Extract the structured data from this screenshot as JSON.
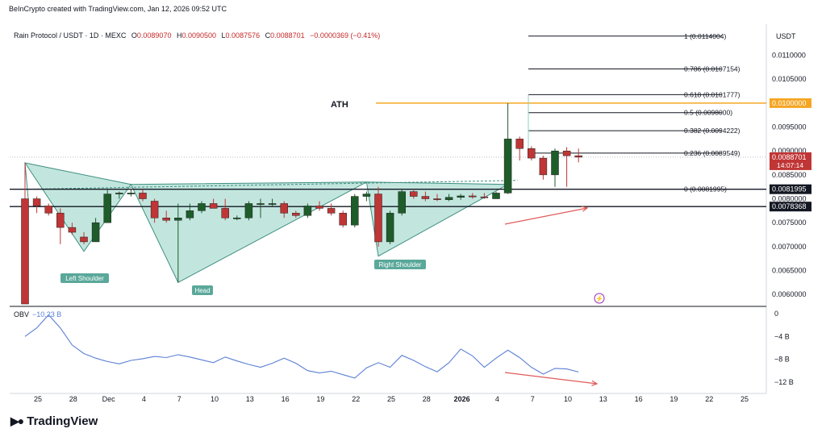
{
  "header": {
    "source": "BeInCrypto created with TradingView.com, Jan 12, 2026 09:52 UTC"
  },
  "legend": {
    "symbol": "Rain Protocol / USDT · 1D · MEXC",
    "open_key": "O",
    "open": "0.0089070",
    "high_key": "H",
    "high": "0.0090500",
    "low_key": "L",
    "low": "0.0087576",
    "close_key": "C",
    "close": "0.0088701",
    "change": "−0.0000369 (−0.41%)"
  },
  "obv": {
    "label": "OBV",
    "value": "−10.23 B"
  },
  "brand": {
    "name": "TradingView",
    "logo_icon": "tradingview-logo-icon"
  },
  "colors": {
    "up": "#1e5c2a",
    "down": "#c03535",
    "pattern_fill": "#8fd1c2",
    "ath": "#f5a623",
    "fib": "#131722",
    "obv_line": "#5b7fd6",
    "arrow": "#e05a5a"
  },
  "chart_data": {
    "type": "candlestick",
    "price_axis": {
      "unit": "USDT",
      "range": [
        0.00575,
        0.01165
      ],
      "ticks": [
        "0.0110000",
        "0.0105000",
        "0.0095000",
        "0.0090000",
        "0.0085000",
        "0.0080000",
        "0.0075000",
        "0.0070000",
        "0.0065000",
        "0.0060000"
      ],
      "tick_values": [
        0.011,
        0.0105,
        0.0095,
        0.009,
        0.0085,
        0.008,
        0.0075,
        0.007,
        0.0065,
        0.006
      ],
      "badges": [
        {
          "value": 0.01,
          "label": "0.0100000",
          "color": "#f5a623"
        },
        {
          "value": 0.0088701,
          "label": "0.0088701",
          "sub": "14:07:14",
          "color": "#c03535"
        },
        {
          "value": 0.0081995,
          "label": "0.0081995",
          "color": "#131722"
        },
        {
          "value": 0.0078368,
          "label": "0.0078368",
          "color": "#131722"
        }
      ]
    },
    "x_axis": {
      "labels": [
        "25",
        "28",
        "Dec",
        "4",
        "7",
        "10",
        "13",
        "16",
        "19",
        "22",
        "25",
        "28",
        "2026",
        "4",
        "7",
        "10",
        "13",
        "16",
        "19",
        "22",
        "25"
      ],
      "label_indices": [
        0,
        3,
        6,
        9,
        12,
        15,
        18,
        21,
        24,
        27,
        30,
        33,
        36,
        39,
        42,
        45,
        48,
        51,
        54,
        57,
        60
      ]
    },
    "candles": [
      {
        "o": 0.008,
        "h": 0.00875,
        "l": 0.0058,
        "c": 0.0058
      },
      {
        "o": 0.008,
        "h": 0.00805,
        "l": 0.0077,
        "c": 0.00785
      },
      {
        "o": 0.00785,
        "h": 0.0079,
        "l": 0.00765,
        "c": 0.0077
      },
      {
        "o": 0.0077,
        "h": 0.0078,
        "l": 0.00705,
        "c": 0.0074
      },
      {
        "o": 0.0074,
        "h": 0.0075,
        "l": 0.00725,
        "c": 0.0073
      },
      {
        "o": 0.0072,
        "h": 0.0073,
        "l": 0.00705,
        "c": 0.0071
      },
      {
        "o": 0.0071,
        "h": 0.0076,
        "l": 0.0071,
        "c": 0.0075
      },
      {
        "o": 0.0075,
        "h": 0.0082,
        "l": 0.0075,
        "c": 0.0081
      },
      {
        "o": 0.0081,
        "h": 0.00815,
        "l": 0.008,
        "c": 0.00812
      },
      {
        "o": 0.00812,
        "h": 0.0082,
        "l": 0.00805,
        "c": 0.00812
      },
      {
        "o": 0.00812,
        "h": 0.0082,
        "l": 0.00795,
        "c": 0.008
      },
      {
        "o": 0.00795,
        "h": 0.008,
        "l": 0.0075,
        "c": 0.0076
      },
      {
        "o": 0.0076,
        "h": 0.00775,
        "l": 0.0075,
        "c": 0.00755
      },
      {
        "o": 0.00755,
        "h": 0.0079,
        "l": 0.00625,
        "c": 0.0076
      },
      {
        "o": 0.0076,
        "h": 0.0079,
        "l": 0.00755,
        "c": 0.00775
      },
      {
        "o": 0.00775,
        "h": 0.00795,
        "l": 0.0077,
        "c": 0.0079
      },
      {
        "o": 0.0079,
        "h": 0.008,
        "l": 0.0078,
        "c": 0.0078
      },
      {
        "o": 0.0078,
        "h": 0.008,
        "l": 0.00755,
        "c": 0.0076
      },
      {
        "o": 0.0076,
        "h": 0.00765,
        "l": 0.00755,
        "c": 0.0076
      },
      {
        "o": 0.0076,
        "h": 0.00795,
        "l": 0.00755,
        "c": 0.0079
      },
      {
        "o": 0.0079,
        "h": 0.008,
        "l": 0.0076,
        "c": 0.0079
      },
      {
        "o": 0.0079,
        "h": 0.008,
        "l": 0.00785,
        "c": 0.0079
      },
      {
        "o": 0.0079,
        "h": 0.00795,
        "l": 0.0076,
        "c": 0.0077
      },
      {
        "o": 0.0077,
        "h": 0.00775,
        "l": 0.0076,
        "c": 0.00765
      },
      {
        "o": 0.00765,
        "h": 0.0079,
        "l": 0.0076,
        "c": 0.00785
      },
      {
        "o": 0.00785,
        "h": 0.00795,
        "l": 0.00775,
        "c": 0.0078
      },
      {
        "o": 0.0078,
        "h": 0.0079,
        "l": 0.00765,
        "c": 0.0077
      },
      {
        "o": 0.0077,
        "h": 0.00775,
        "l": 0.0074,
        "c": 0.00745
      },
      {
        "o": 0.00745,
        "h": 0.0081,
        "l": 0.0074,
        "c": 0.00805
      },
      {
        "o": 0.00805,
        "h": 0.00815,
        "l": 0.00795,
        "c": 0.0081
      },
      {
        "o": 0.0081,
        "h": 0.00825,
        "l": 0.007,
        "c": 0.0071
      },
      {
        "o": 0.0071,
        "h": 0.00775,
        "l": 0.00705,
        "c": 0.0077
      },
      {
        "o": 0.0077,
        "h": 0.0082,
        "l": 0.00765,
        "c": 0.00815
      },
      {
        "o": 0.00815,
        "h": 0.0082,
        "l": 0.008,
        "c": 0.00805
      },
      {
        "o": 0.00805,
        "h": 0.00815,
        "l": 0.00795,
        "c": 0.008
      },
      {
        "o": 0.008,
        "h": 0.0081,
        "l": 0.00795,
        "c": 0.00798
      },
      {
        "o": 0.00798,
        "h": 0.0081,
        "l": 0.00795,
        "c": 0.00803
      },
      {
        "o": 0.00803,
        "h": 0.0081,
        "l": 0.00798,
        "c": 0.00806
      },
      {
        "o": 0.00806,
        "h": 0.00812,
        "l": 0.008,
        "c": 0.00804
      },
      {
        "o": 0.00804,
        "h": 0.00812,
        "l": 0.008,
        "c": 0.00802
      },
      {
        "o": 0.008,
        "h": 0.00815,
        "l": 0.008,
        "c": 0.00812
      },
      {
        "o": 0.00812,
        "h": 0.01,
        "l": 0.0081,
        "c": 0.00925
      },
      {
        "o": 0.00925,
        "h": 0.0093,
        "l": 0.0088,
        "c": 0.00905
      },
      {
        "o": 0.00905,
        "h": 0.0091,
        "l": 0.0088,
        "c": 0.00885
      },
      {
        "o": 0.00885,
        "h": 0.0089,
        "l": 0.0084,
        "c": 0.0085
      },
      {
        "o": 0.0085,
        "h": 0.00905,
        "l": 0.00825,
        "c": 0.009
      },
      {
        "o": 0.009,
        "h": 0.00908,
        "l": 0.00825,
        "c": 0.0089
      },
      {
        "o": 0.0089,
        "h": 0.00905,
        "l": 0.00876,
        "c": 0.00887
      }
    ],
    "fib_levels": [
      {
        "label": "1 (0.0114004)",
        "value": 0.0114004
      },
      {
        "label": "0.786 (0.0107154)",
        "value": 0.0107154
      },
      {
        "label": "0.618 (0.0101777)",
        "value": 0.0101777
      },
      {
        "label": "0.5 (0.0098000)",
        "value": 0.0098
      },
      {
        "label": "0.382 (0.0094222)",
        "value": 0.0094222
      },
      {
        "label": "0.236 (0.0089549)",
        "value": 0.0089549
      },
      {
        "label": "0 (0.0081995)",
        "value": 0.0081995
      }
    ],
    "ath": {
      "label": "ATH",
      "value": 0.01
    },
    "support_lines": [
      0.0081995,
      0.0078368
    ],
    "pattern": {
      "labels": [
        "Left Shoulder",
        "Head",
        "Right Shoulder"
      ],
      "left_shoulder": [
        [
          0,
          0.00875
        ],
        [
          5,
          0.0069
        ],
        [
          9,
          0.0083
        ]
      ],
      "head": [
        [
          9,
          0.0083
        ],
        [
          13,
          0.00625
        ],
        [
          29,
          0.00835
        ]
      ],
      "right_shoulder": [
        [
          29,
          0.00835
        ],
        [
          30,
          0.0068
        ],
        [
          41,
          0.0083
        ]
      ],
      "neckline": [
        [
          0,
          0.0082
        ],
        [
          41,
          0.00835
        ]
      ]
    },
    "obv_axis": {
      "ticks": [
        "0",
        "−4 B",
        "−8 B",
        "−12 B"
      ],
      "tick_values": [
        0,
        -4,
        -8,
        -12
      ],
      "range": [
        -14,
        1
      ]
    },
    "obv_series": {
      "name": "OBV",
      "values": [
        -4,
        -2.5,
        -0.2,
        -2.5,
        -5.5,
        -7,
        -7.8,
        -8.4,
        -8.8,
        -8.2,
        -7.9,
        -7.5,
        -7.7,
        -7.2,
        -7.6,
        -8.1,
        -8.6,
        -7.6,
        -8.3,
        -8.9,
        -9.4,
        -8.7,
        -7.8,
        -8.7,
        -10,
        -10.4,
        -10.1,
        -10.7,
        -11.3,
        -9.5,
        -8.6,
        -9.4,
        -7.3,
        -8.2,
        -9.3,
        -10.2,
        -8.6,
        -6.2,
        -7.4,
        -9.4,
        -7.8,
        -6.4,
        -7.7,
        -9.4,
        -10.6,
        -9.6,
        -9.7,
        -10.23
      ]
    }
  }
}
